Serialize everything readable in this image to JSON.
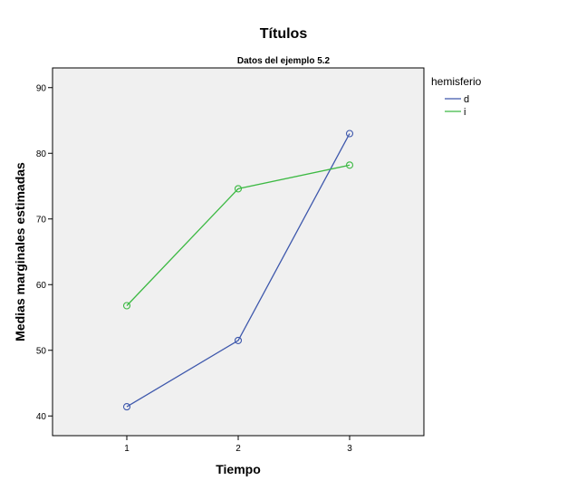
{
  "chart_data": {
    "type": "line",
    "title": "Títulos",
    "subtitle": "Datos  del ejemplo 5.2",
    "xlabel": "Tiempo",
    "ylabel": "Medias marginales estimadas",
    "categories": [
      "1",
      "2",
      "3"
    ],
    "ylim": [
      37,
      93
    ],
    "yticks": [
      40,
      50,
      60,
      70,
      80,
      90
    ],
    "legend_title": "hemisferio",
    "legend_position": "right",
    "grid": false,
    "plot_background": "#f0f0f0",
    "series": [
      {
        "name": "d",
        "color": "#3e58ac",
        "values": [
          41.4,
          51.5,
          83.0
        ]
      },
      {
        "name": "i",
        "color": "#3cb943",
        "values": [
          56.8,
          74.6,
          78.2
        ]
      }
    ]
  }
}
